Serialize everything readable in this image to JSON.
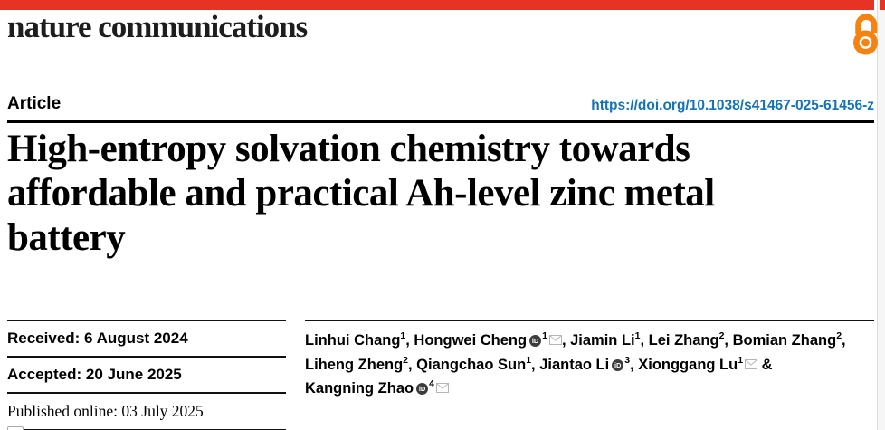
{
  "colors": {
    "brand_red": "#e63323",
    "link_blue": "#1472b6",
    "oa_orange": "#f68212",
    "rule_black": "#111111"
  },
  "masthead": {
    "journal": "nature communications",
    "open_access_icon": "open-access-padlock"
  },
  "article": {
    "type_label": "Article",
    "doi": "https://doi.org/10.1038/s41467-025-61456-z"
  },
  "title": {
    "full": "High-entropy solvation chemistry towards affordable and practical Ah-level zinc metal battery",
    "lines": [
      "High-entropy solvation chemistry towards",
      "affordable and practical Ah-level zinc metal",
      "battery"
    ]
  },
  "history": {
    "received": "Received: 6 August 2024",
    "accepted": "Accepted: 20 June 2025",
    "published": "Published online: 03 July 2025"
  },
  "icons": {
    "orcid_label": "iD",
    "orcid_icon": "orcid-id-circle",
    "mail_icon": "envelope",
    "check_updates_icon": "check-for-updates-badge (partially visible)"
  },
  "authors": {
    "segments": [
      {
        "name": "Linhui Chang",
        "sup": "1",
        "sep": ", "
      },
      {
        "name": "Hongwei Cheng",
        "orcid": true,
        "sup": "1",
        "mail": true,
        "sep": ", "
      },
      {
        "name": "Jiamin Li",
        "sup": "1",
        "sep": ", "
      },
      {
        "name": "Lei Zhang",
        "sup": "2",
        "sep": ", "
      },
      {
        "name": "Bomian Zhang",
        "sup": "2",
        "sep": ",",
        "br": true
      },
      {
        "name": "Liheng Zheng",
        "sup": "2",
        "sep": ", "
      },
      {
        "name": "Qiangchao Sun",
        "sup": "1",
        "sep": ", "
      },
      {
        "name": "Jiantao Li",
        "orcid": true,
        "sup": "3",
        "sep": ", "
      },
      {
        "name": "Xionggang Lu",
        "sup": "1",
        "mail": true,
        "sep": " &",
        "br": true
      },
      {
        "name": "Kangning Zhao",
        "orcid": true,
        "sup": "4",
        "mail": true,
        "sep": ""
      }
    ]
  }
}
